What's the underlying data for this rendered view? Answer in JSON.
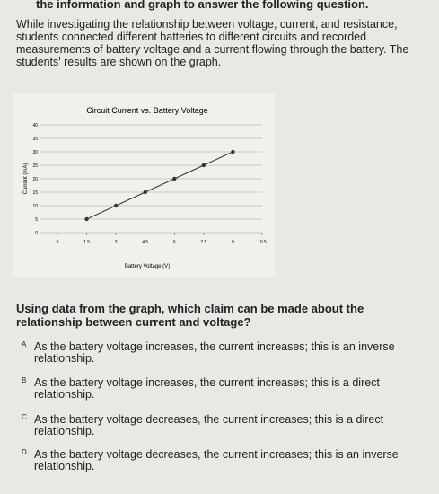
{
  "header": {
    "title": "the information and graph to answer the following question."
  },
  "intro": "While investigating the relationship between voltage, current, and resistance, students connected different batteries to different circuits and recorded measurements of battery voltage and a current flowing through the battery. The students' results are shown on the graph.",
  "chart_data": {
    "type": "line",
    "title": "Circuit Current vs. Battery Voltage",
    "x_label": "Battery Voltage (V)",
    "y_label": "Current (mA)",
    "x": [
      1.5,
      3,
      4.5,
      6,
      7.5,
      9
    ],
    "values": [
      5,
      10,
      15,
      20,
      25,
      30
    ],
    "color": "#333333",
    "xlim": [
      0,
      10.5
    ],
    "xticks": [
      0,
      1.5,
      3,
      4.5,
      6,
      7.5,
      9,
      10.5
    ],
    "ylim": [
      0,
      40
    ],
    "yticks": [
      0,
      5,
      10,
      15,
      20,
      25,
      30,
      35,
      40
    ],
    "grid": true
  },
  "question": "Using data from the graph, which claim can be made about the relationship between current and voltage?",
  "options": [
    {
      "letter": "A",
      "text": "As the battery voltage increases, the current increases; this is an inverse relationship."
    },
    {
      "letter": "B",
      "text": "As the battery voltage increases, the current increases; this is a direct relationship."
    },
    {
      "letter": "C",
      "text": "As the battery voltage decreases, the current increases; this is a direct relationship."
    },
    {
      "letter": "D",
      "text": "As the battery voltage decreases, the current increases; this is an inverse relationship."
    }
  ]
}
